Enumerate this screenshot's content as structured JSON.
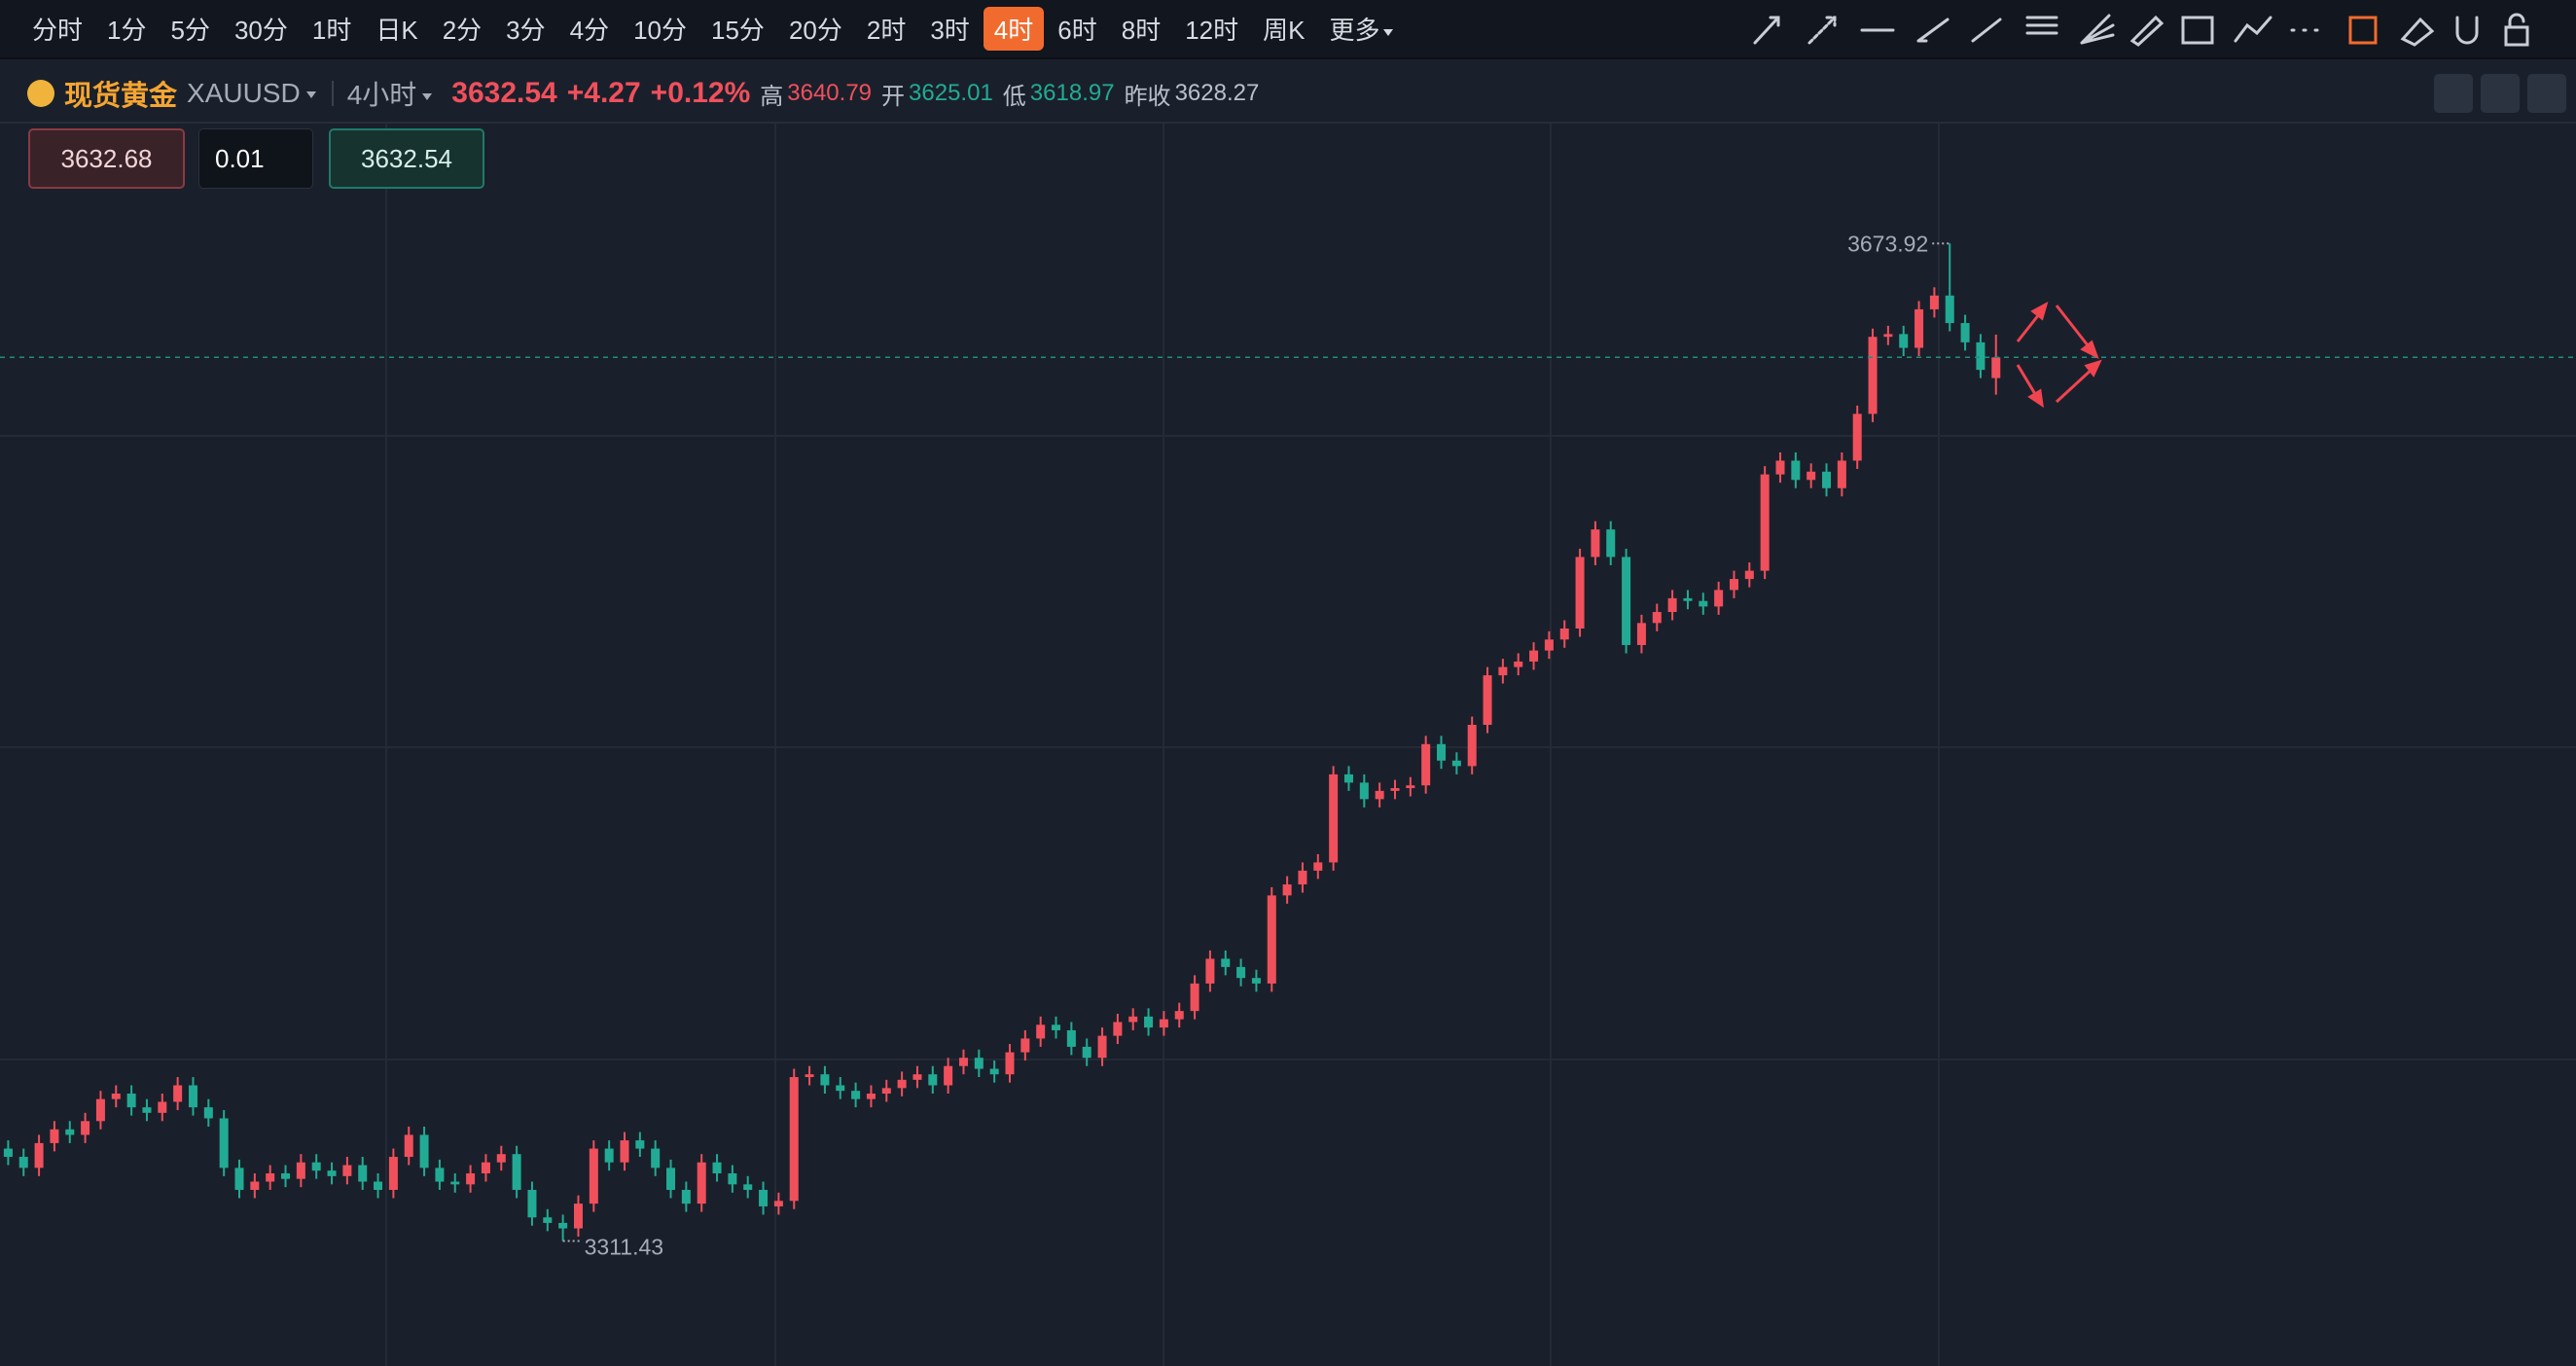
{
  "toolbar": {
    "intervals": [
      "分时",
      "1分",
      "5分",
      "30分",
      "1时",
      "日K",
      "2分",
      "3分",
      "4分",
      "10分",
      "15分",
      "20分",
      "2时",
      "3时",
      "4时",
      "6时",
      "8时",
      "12时",
      "周K",
      "更多"
    ],
    "active_index": 14
  },
  "symbol": {
    "name": "现货黄金",
    "code": "XAUUSD",
    "interval": "4小时"
  },
  "quote": {
    "change": "+4.27",
    "change_pct": "+0.12%",
    "high_label": "高",
    "open_label": "开",
    "low_label": "低",
    "prev_close_label": "昨收",
    "prev_close": 3628.27
  },
  "order": {
    "ask": 3632.68,
    "quantity": 0.01
  },
  "chart_data": {
    "type": "candlestick",
    "open": [
      3345,
      3342,
      3338,
      3347,
      3352,
      3350,
      3355,
      3363,
      3365,
      3360,
      3358,
      3362,
      3368,
      3360,
      3356,
      3338,
      3330,
      3333,
      3336,
      3334,
      3340,
      3337,
      3335,
      3339,
      3333,
      3330,
      3342,
      3350,
      3338,
      3333,
      3332,
      3336,
      3340,
      3343,
      3330,
      3320,
      3318,
      3316,
      3325,
      3345,
      3340,
      3348,
      3345,
      3338,
      3330,
      3325,
      3340,
      3336,
      3332,
      3330,
      3324,
      3326,
      3371,
      3372,
      3368,
      3366,
      3363,
      3365,
      3367,
      3370,
      3372,
      3368,
      3375,
      3378,
      3374,
      3372,
      3380,
      3385,
      3390,
      3388,
      3382,
      3378,
      3386,
      3391,
      3393,
      3389,
      3392,
      3395,
      3405,
      3414,
      3411,
      3407,
      3405,
      3437,
      3441,
      3446,
      3449,
      3481,
      3478,
      3472,
      3475,
      3476,
      3477,
      3492,
      3486,
      3484,
      3499,
      3517,
      3520,
      3522,
      3526,
      3530,
      3534,
      3560,
      3570,
      3560,
      3528,
      3536,
      3540,
      3545,
      3544,
      3542,
      3548,
      3552,
      3555,
      3590,
      3595,
      3588,
      3591,
      3585,
      3595,
      3612,
      3640,
      3641,
      3636,
      3650,
      3655,
      3645,
      3638,
      3625.01
    ],
    "high": [
      3348,
      3345,
      3350,
      3355,
      3355,
      3358,
      3366,
      3368,
      3368,
      3363,
      3365,
      3371,
      3371,
      3363,
      3359,
      3341,
      3336,
      3339,
      3339,
      3343,
      3343,
      3340,
      3342,
      3342,
      3336,
      3345,
      3353,
      3353,
      3341,
      3336,
      3339,
      3343,
      3346,
      3346,
      3333,
      3323,
      3321,
      3328,
      3348,
      3348,
      3351,
      3351,
      3348,
      3341,
      3333,
      3343,
      3343,
      3339,
      3335,
      3333,
      3329,
      3374,
      3375,
      3375,
      3371,
      3369,
      3368,
      3370,
      3373,
      3375,
      3375,
      3378,
      3381,
      3381,
      3377,
      3383,
      3388,
      3393,
      3393,
      3391,
      3385,
      3389,
      3394,
      3396,
      3396,
      3395,
      3398,
      3408,
      3417,
      3417,
      3414,
      3410,
      3440,
      3444,
      3449,
      3452,
      3484,
      3484,
      3481,
      3478,
      3479,
      3480,
      3495,
      3495,
      3489,
      3502,
      3520,
      3523,
      3525,
      3529,
      3533,
      3537,
      3563,
      3573,
      3573,
      3563,
      3539,
      3543,
      3548,
      3548,
      3547,
      3551,
      3555,
      3558,
      3593,
      3598,
      3598,
      3594,
      3594,
      3598,
      3615,
      3643,
      3644,
      3644,
      3653,
      3658,
      3673.92,
      3648,
      3641,
      3640.79
    ],
    "low": [
      3339,
      3335,
      3335,
      3344,
      3347,
      3347,
      3352,
      3360,
      3357,
      3355,
      3355,
      3359,
      3357,
      3353,
      3335,
      3327,
      3327,
      3330,
      3331,
      3331,
      3334,
      3332,
      3332,
      3330,
      3327,
      3327,
      3339,
      3335,
      3330,
      3329,
      3329,
      3333,
      3337,
      3327,
      3317,
      3315,
      3311.43,
      3313,
      3322,
      3337,
      3337,
      3342,
      3335,
      3327,
      3322,
      3322,
      3333,
      3329,
      3327,
      3321,
      3321,
      3323,
      3368,
      3365,
      3363,
      3360,
      3360,
      3362,
      3364,
      3367,
      3365,
      3365,
      3372,
      3371,
      3369,
      3369,
      3377,
      3382,
      3385,
      3379,
      3375,
      3375,
      3383,
      3388,
      3386,
      3386,
      3389,
      3392,
      3402,
      3408,
      3404,
      3402,
      3402,
      3434,
      3438,
      3443,
      3446,
      3475,
      3469,
      3469,
      3472,
      3473,
      3474,
      3483,
      3481,
      3481,
      3496,
      3514,
      3517,
      3519,
      3523,
      3527,
      3531,
      3557,
      3557,
      3525,
      3525,
      3533,
      3537,
      3541,
      3539,
      3539,
      3545,
      3549,
      3552,
      3587,
      3585,
      3585,
      3582,
      3582,
      3592,
      3609,
      3637,
      3633,
      3633,
      3647,
      3642,
      3635,
      3625,
      3618.97
    ],
    "close": [
      3342,
      3338,
      3347,
      3352,
      3350,
      3355,
      3363,
      3365,
      3360,
      3358,
      3362,
      3368,
      3360,
      3356,
      3338,
      3330,
      3333,
      3336,
      3334,
      3340,
      3337,
      3335,
      3339,
      3333,
      3330,
      3342,
      3350,
      3338,
      3333,
      3332,
      3336,
      3340,
      3343,
      3330,
      3320,
      3318,
      3316,
      3325,
      3345,
      3340,
      3348,
      3345,
      3338,
      3330,
      3325,
      3340,
      3336,
      3332,
      3330,
      3324,
      3326,
      3371,
      3372,
      3368,
      3366,
      3363,
      3365,
      3367,
      3370,
      3372,
      3368,
      3375,
      3378,
      3374,
      3372,
      3380,
      3385,
      3390,
      3388,
      3382,
      3378,
      3386,
      3391,
      3393,
      3389,
      3392,
      3395,
      3405,
      3414,
      3411,
      3407,
      3405,
      3437,
      3441,
      3446,
      3449,
      3481,
      3478,
      3472,
      3475,
      3476,
      3477,
      3492,
      3486,
      3484,
      3499,
      3517,
      3520,
      3522,
      3526,
      3530,
      3534,
      3560,
      3570,
      3560,
      3528,
      3536,
      3540,
      3545,
      3544,
      3542,
      3548,
      3552,
      3555,
      3590,
      3595,
      3588,
      3591,
      3585,
      3595,
      3612,
      3640,
      3641,
      3636,
      3650,
      3655,
      3645,
      3638,
      3628,
      3632.54
    ],
    "ylim": [
      3266,
      3717.5
    ],
    "up_color": "#f0505c",
    "down_color": "#22ab94",
    "last_price_line": true
  }
}
